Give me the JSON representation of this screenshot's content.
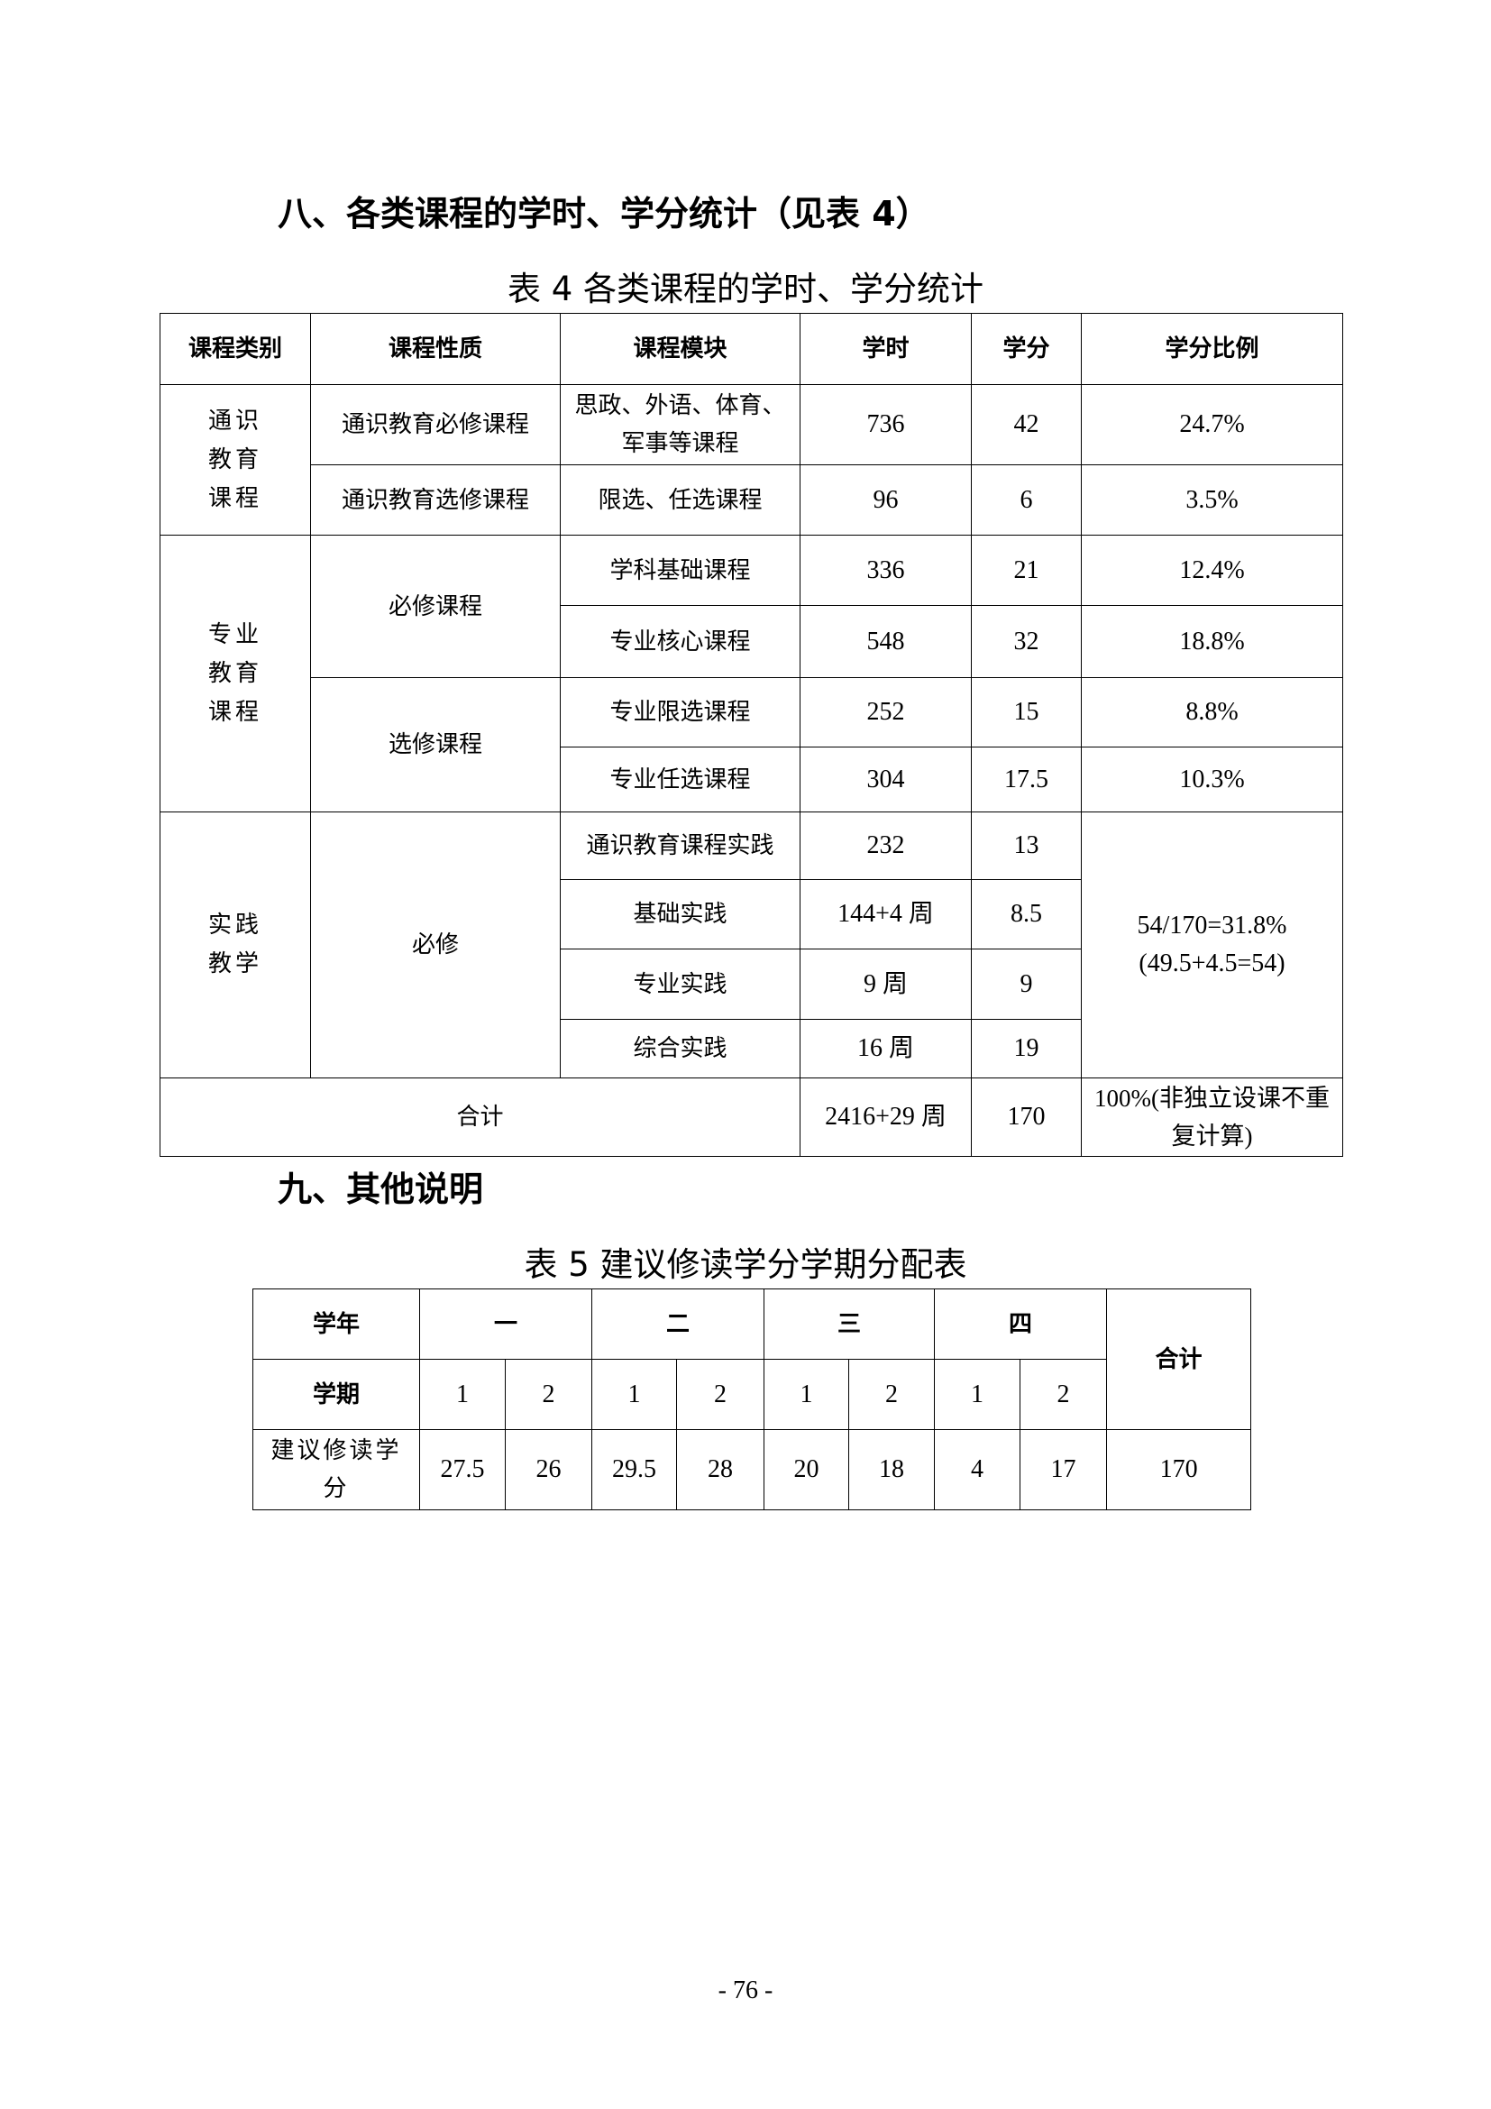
{
  "section8_heading": "八、各类课程的学时、学分统计（见表 4）",
  "table4": {
    "caption": "表 4  各类课程的学时、学分统计",
    "headers": [
      "课程类别",
      "课程性质",
      "课程模块",
      "学时",
      "学分",
      "学分比例"
    ],
    "groups": {
      "general": "通识教育课程",
      "major": "专业教育课程",
      "practice": "实践教学"
    },
    "natures": {
      "general_required": "通识教育必修课程",
      "general_elective": "通识教育选修课程",
      "major_required": "必修课程",
      "major_elective": "选修课程",
      "practice_required": "必修"
    },
    "rows": [
      {
        "module": "思政、外语、体育、军事等课程",
        "hours": "736",
        "credits": "42",
        "ratio": "24.7%"
      },
      {
        "module": "限选、任选课程",
        "hours": "96",
        "credits": "6",
        "ratio": "3.5%"
      },
      {
        "module": "学科基础课程",
        "hours": "336",
        "credits": "21",
        "ratio": "12.4%"
      },
      {
        "module": "专业核心课程",
        "hours": "548",
        "credits": "32",
        "ratio": "18.8%"
      },
      {
        "module": "专业限选课程",
        "hours": "252",
        "credits": "15",
        "ratio": "8.8%"
      },
      {
        "module": "专业任选课程",
        "hours": "304",
        "credits": "17.5",
        "ratio": "10.3%"
      },
      {
        "module": "通识教育课程实践",
        "hours": "232",
        "credits": "13"
      },
      {
        "module": "基础实践",
        "hours": "144+4 周",
        "credits": "8.5"
      },
      {
        "module": "专业实践",
        "hours": "9 周",
        "credits": "9"
      },
      {
        "module": "综合实践",
        "hours": "16 周",
        "credits": "19"
      }
    ],
    "practice_ratio_line1": "54/170=31.8%",
    "practice_ratio_line2": "(49.5+4.5=54)",
    "total": {
      "label": "合计",
      "hours": "2416+29 周",
      "credits": "170",
      "ratio": "100%(非独立设课不重复计算)"
    }
  },
  "section9_heading": "九、其他说明",
  "table5": {
    "caption": "表 5  建议修读学分学期分配表",
    "year_label": "学年",
    "years": [
      "一",
      "二",
      "三",
      "四"
    ],
    "total_label": "合计",
    "term_label": "学期",
    "terms": [
      "1",
      "2",
      "1",
      "2",
      "1",
      "2",
      "1",
      "2"
    ],
    "credits_label": "建议修读学分",
    "credits": [
      "27.5",
      "26",
      "29.5",
      "28",
      "20",
      "18",
      "4",
      "17"
    ],
    "credits_total": "170"
  },
  "page_number": "- 76 -"
}
